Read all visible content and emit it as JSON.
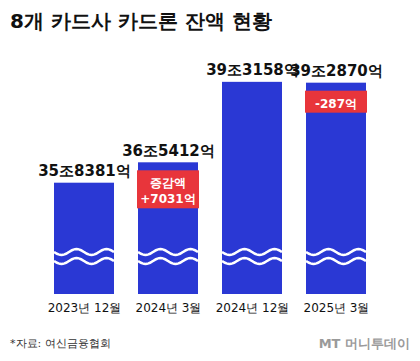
{
  "chart_data": {
    "type": "bar",
    "title": "8개 카드사 카드론 잔액 현황",
    "categories": [
      "2023년 12월",
      "2024년 3월",
      "2024년 12월",
      "2025년 3월"
    ],
    "values": [
      358381,
      365412,
      393158,
      392870
    ],
    "value_labels": [
      "35조8381억",
      "36조5412억",
      "39조3158억",
      "39조2870억"
    ],
    "color": "#2a38d4",
    "ylim": [
      320000,
      400000
    ],
    "data_labels": true,
    "tick_labels": "x",
    "annotations": [
      {
        "category": "2024년 3월",
        "lines": [
          "증감액",
          "+7031억"
        ],
        "color": "#e8353b"
      },
      {
        "category": "2025년 3월",
        "lines": [
          "-287억"
        ],
        "color": "#e8353b"
      }
    ],
    "source": "*자료: 여신금융협회",
    "watermark": "MT 머니투데이"
  }
}
